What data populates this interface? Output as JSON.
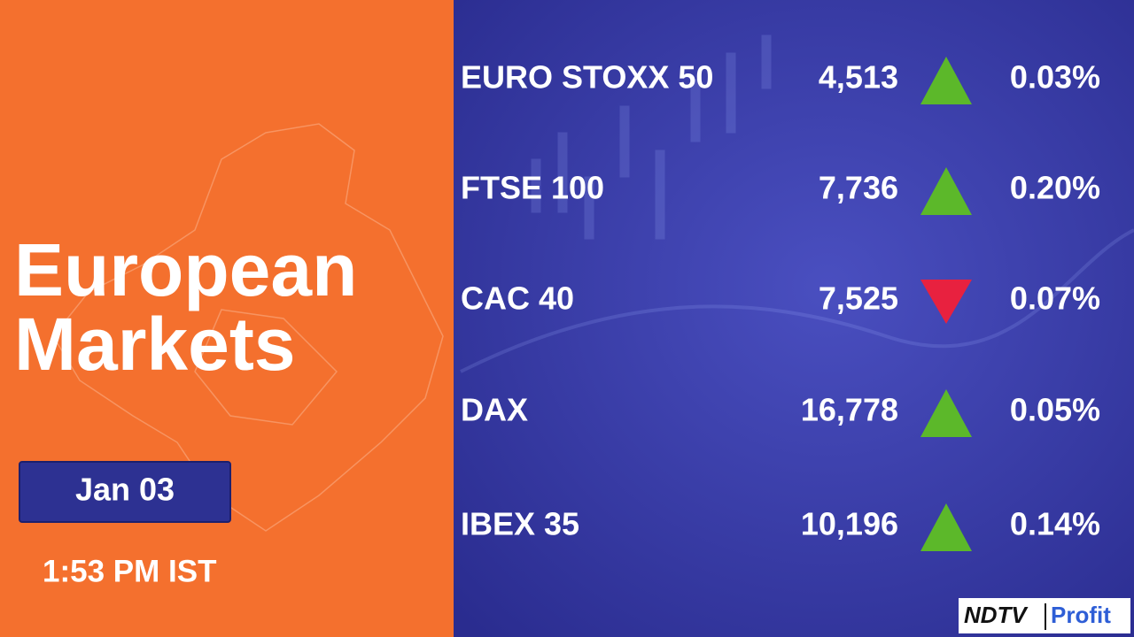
{
  "header": {
    "title_line1": "European",
    "title_line2": "Markets",
    "date": "Jan 03",
    "time": "1:53 PM IST"
  },
  "table": {
    "rows": [
      {
        "name": "EURO STOXX 50",
        "value": "4,513",
        "change": "0.03%",
        "direction": "up"
      },
      {
        "name": "FTSE 100",
        "value": "7,736",
        "change": "0.20%",
        "direction": "up"
      },
      {
        "name": "CAC 40",
        "value": "7,525",
        "change": "0.07%",
        "direction": "down"
      },
      {
        "name": "DAX",
        "value": "16,778",
        "change": "0.05%",
        "direction": "up"
      },
      {
        "name": "IBEX 35",
        "value": "10,196",
        "change": "0.14%",
        "direction": "up"
      }
    ]
  },
  "logo": {
    "left": "NDTV",
    "right": "Profit"
  }
}
